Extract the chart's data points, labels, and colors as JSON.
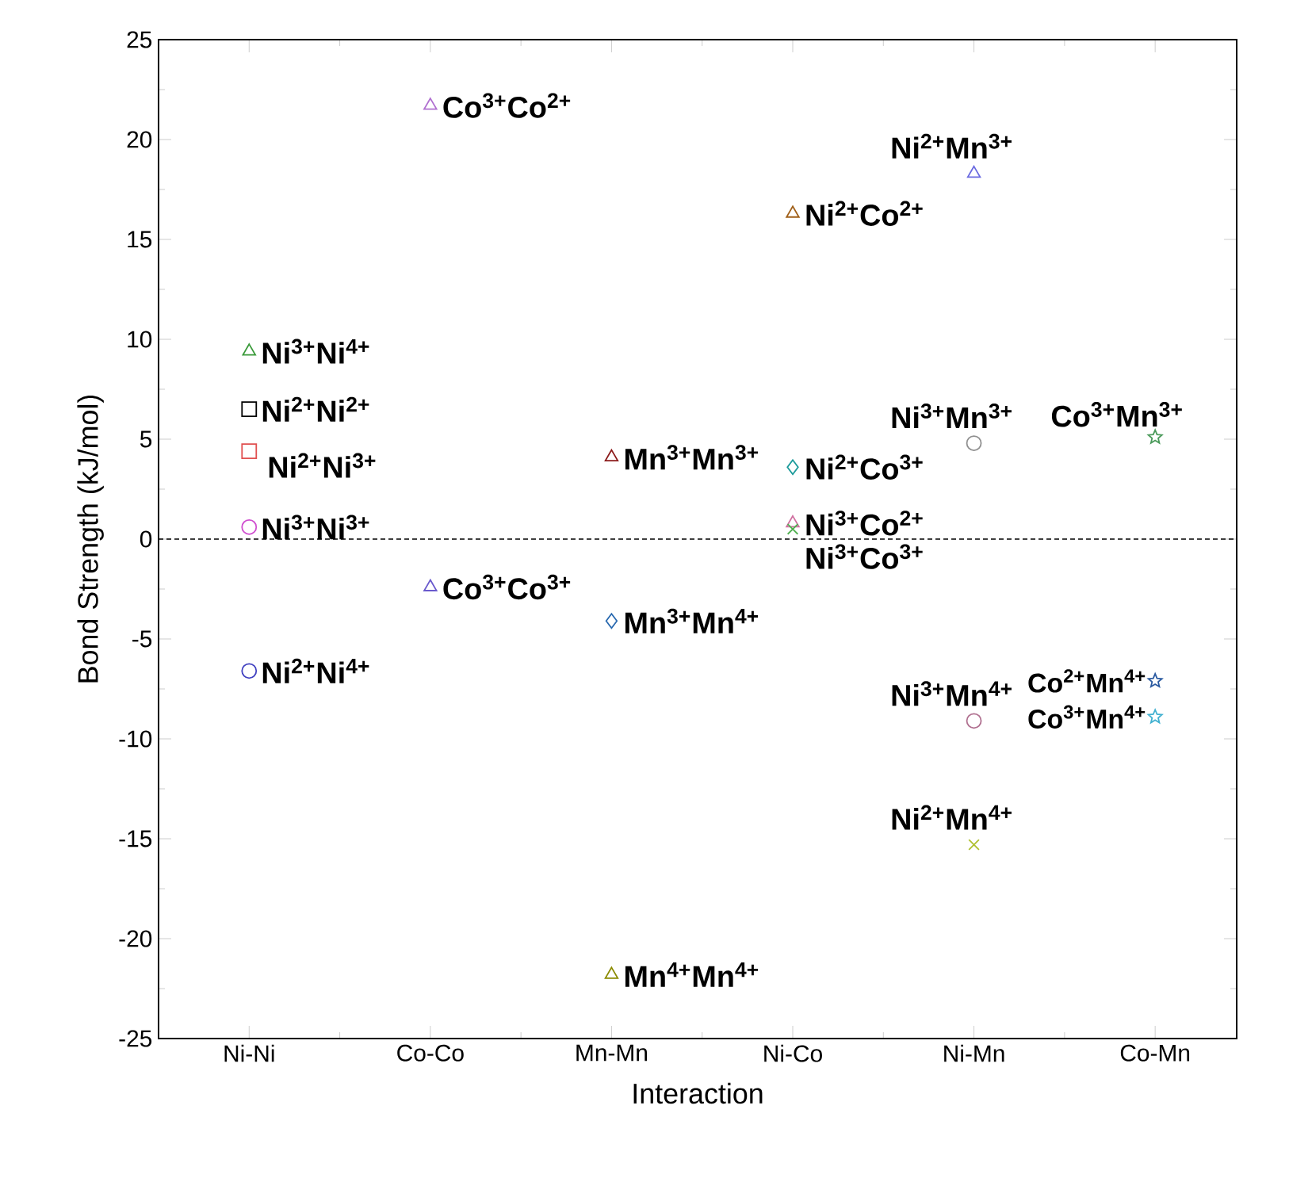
{
  "chart_data": {
    "type": "scatter",
    "xlabel": "Interaction",
    "ylabel": "Bond Strength (kJ/mol)",
    "categories": [
      "Ni-Ni",
      "Co-Co",
      "Mn-Mn",
      "Ni-Co",
      "Ni-Mn",
      "Co-Mn"
    ],
    "ylim": [
      -25,
      25
    ],
    "yticks": [
      -25,
      -20,
      -15,
      -10,
      -5,
      0,
      5,
      10,
      15,
      20,
      25
    ],
    "grid": false,
    "ref_lines": [
      {
        "axis": "y",
        "value": 0,
        "line_style": "dashed",
        "color": "#000000"
      }
    ],
    "series": [
      {
        "name": "Ni$^{3+}$Ni$^{4+}$",
        "color": "#3a9a3a",
        "marker": "triangle",
        "x": [
          "Ni-Ni"
        ],
        "values": [
          9.4
        ]
      },
      {
        "name": "Ni$^{2+}$Ni$^{2+}$",
        "color": "#000000",
        "marker": "square",
        "x": [
          "Ni-Ni"
        ],
        "values": [
          6.5
        ]
      },
      {
        "name": "Ni$^{2+}$Ni$^{3+}$",
        "color": "#e05050",
        "marker": "square",
        "x": [
          "Ni-Ni"
        ],
        "values": [
          4.4
        ]
      },
      {
        "name": "Ni$^{3+}$Ni$^{3+}$",
        "color": "#d050d0",
        "marker": "circle",
        "x": [
          "Ni-Ni"
        ],
        "values": [
          0.6
        ]
      },
      {
        "name": "Ni$^{2+}$Ni$^{4+}$",
        "color": "#4040c0",
        "marker": "circle",
        "x": [
          "Ni-Ni"
        ],
        "values": [
          -6.6
        ]
      },
      {
        "name": "Co$^{3+}$Co$^{2+}$",
        "color": "#b070d0",
        "marker": "triangle",
        "x": [
          "Co-Co"
        ],
        "values": [
          21.7
        ]
      },
      {
        "name": "Co$^{3+}$Co$^{3+}$",
        "color": "#6a5acd",
        "marker": "triangle",
        "x": [
          "Co-Co"
        ],
        "values": [
          -2.4
        ]
      },
      {
        "name": "Mn$^{3+}$Mn$^{3+}$",
        "color": "#8b1a1a",
        "marker": "triangle",
        "x": [
          "Mn-Mn"
        ],
        "values": [
          4.1
        ]
      },
      {
        "name": "Mn$^{3+}$Mn$^{4+}$",
        "color": "#2a6ab0",
        "marker": "diamond",
        "x": [
          "Mn-Mn"
        ],
        "values": [
          -4.1
        ]
      },
      {
        "name": "Mn$^{4+}$Mn$^{4+}$",
        "color": "#8b8b00",
        "marker": "triangle",
        "x": [
          "Mn-Mn"
        ],
        "values": [
          -21.8
        ]
      },
      {
        "name": "Ni$^{2+}$Co$^{2+}$",
        "color": "#a0601a",
        "marker": "triangle",
        "x": [
          "Ni-Co"
        ],
        "values": [
          16.3
        ]
      },
      {
        "name": "Ni$^{2+}$Co$^{3+}$",
        "color": "#1a9a9a",
        "marker": "diamond",
        "x": [
          "Ni-Co"
        ],
        "values": [
          3.6
        ]
      },
      {
        "name": "Ni$^{3+}$Co$^{2+}$",
        "color": "#d070a0",
        "marker": "triangle",
        "x": [
          "Ni-Co"
        ],
        "values": [
          0.8
        ]
      },
      {
        "name": "Ni$^{3+}$Co$^{3+}$",
        "color": "#50b050",
        "marker": "cross",
        "x": [
          "Ni-Co"
        ],
        "values": [
          0.5
        ]
      },
      {
        "name": "Ni$^{2+}$Mn$^{3+}$",
        "color": "#6a6ae0",
        "marker": "triangle",
        "x": [
          "Ni-Mn"
        ],
        "values": [
          18.3
        ]
      },
      {
        "name": "Ni$^{3+}$Mn$^{3+}$",
        "color": "#909090",
        "marker": "circle",
        "x": [
          "Ni-Mn"
        ],
        "values": [
          4.8
        ]
      },
      {
        "name": "Ni$^{3+}$Mn$^{4+}$",
        "color": "#b07090",
        "marker": "circle",
        "x": [
          "Ni-Mn"
        ],
        "values": [
          -9.1
        ]
      },
      {
        "name": "Ni$^{2+}$Mn$^{4+}$",
        "color": "#b0c030",
        "marker": "cross",
        "x": [
          "Ni-Mn"
        ],
        "values": [
          -15.3
        ]
      },
      {
        "name": "Co$^{3+}$Mn$^{3+}$",
        "color": "#4a9a5a",
        "marker": "star",
        "x": [
          "Co-Mn"
        ],
        "values": [
          5.1
        ]
      },
      {
        "name": "Co$^{2+}$Mn$^{4+}$",
        "color": "#2a5aa0",
        "marker": "star",
        "x": [
          "Co-Mn"
        ],
        "values": [
          -7.1
        ]
      },
      {
        "name": "Co$^{3+}$Mn$^{4+}$",
        "color": "#40b0d0",
        "marker": "star",
        "x": [
          "Co-Mn"
        ],
        "values": [
          -8.9
        ]
      }
    ]
  }
}
